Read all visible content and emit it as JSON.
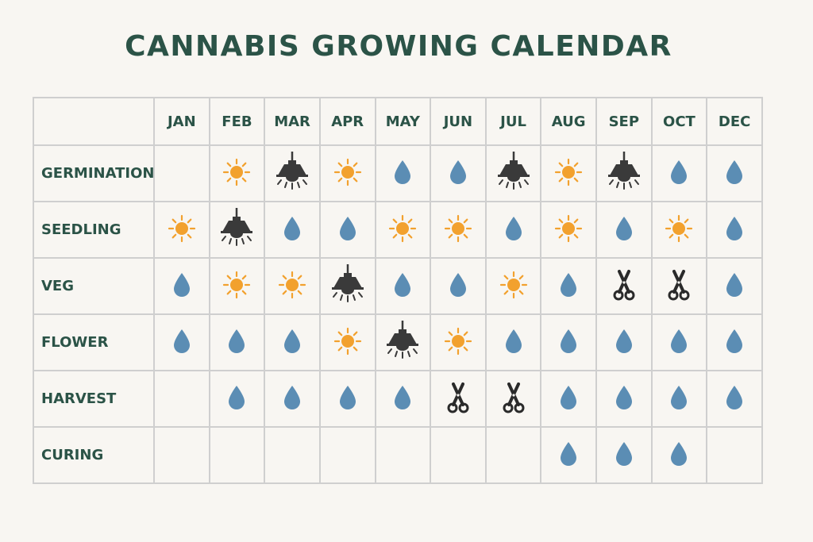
{
  "title": "CANNABIS GROWING CALENDAR",
  "months": [
    "JAN",
    "FEB",
    "MAR",
    "APR",
    "MAY",
    "JUN",
    "JUL",
    "AUG",
    "SEP",
    "OCT",
    "DEC"
  ],
  "icon_legend": {
    "sun": "sun-icon",
    "lamp": "grow-lamp-icon",
    "drop": "water-drop-icon",
    "scissors": "scissors-icon"
  },
  "colors": {
    "title": "#2b5347",
    "sun": "#f2a12e",
    "drop": "#5b8db4",
    "lamp": "#3a3a3a",
    "grid": "#cfcfcf",
    "background": "#f8f6f2"
  },
  "rows": [
    {
      "stage": "GERMINATION",
      "cells": [
        "",
        "sun",
        "lamp",
        "sun",
        "drop",
        "drop",
        "lamp",
        "sun",
        "lamp",
        "drop",
        "drop"
      ]
    },
    {
      "stage": "SEEDLING",
      "cells": [
        "sun",
        "lamp",
        "drop",
        "drop",
        "sun",
        "sun",
        "drop",
        "sun",
        "drop",
        "sun",
        "drop"
      ]
    },
    {
      "stage": "VEG",
      "cells": [
        "drop",
        "sun",
        "sun",
        "lamp",
        "drop",
        "drop",
        "sun",
        "drop",
        "scissors",
        "scissors",
        "drop"
      ]
    },
    {
      "stage": "FLOWER",
      "cells": [
        "drop",
        "drop",
        "drop",
        "sun",
        "lamp",
        "sun",
        "drop",
        "drop",
        "drop",
        "drop",
        "drop"
      ]
    },
    {
      "stage": "HARVEST",
      "cells": [
        "",
        "drop",
        "drop",
        "drop",
        "drop",
        "scissors",
        "scissors",
        "drop",
        "drop",
        "drop",
        "drop"
      ]
    },
    {
      "stage": "CURING",
      "cells": [
        "",
        "",
        "",
        "",
        "",
        "",
        "",
        "drop",
        "drop",
        "drop",
        ""
      ]
    }
  ]
}
